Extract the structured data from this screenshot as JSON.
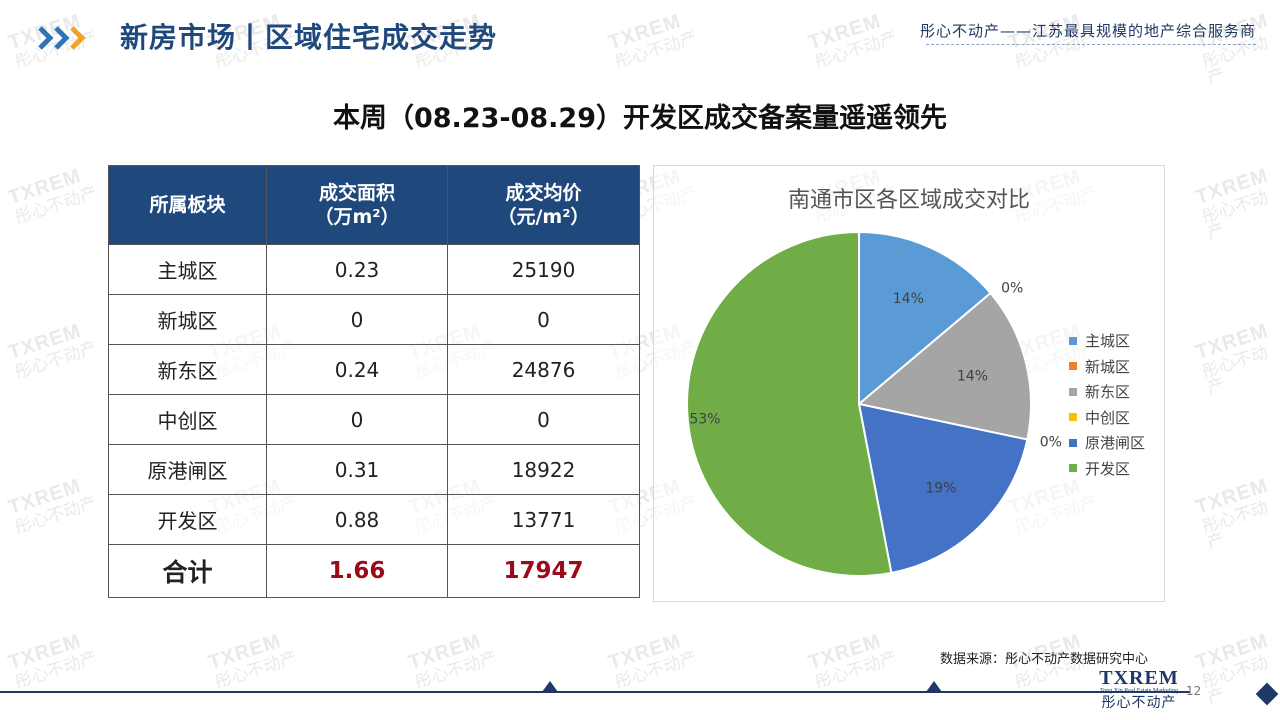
{
  "header": {
    "title": "新房市场丨区域住宅成交走势",
    "tagline": "彤心不动产——江苏最具规模的地产综合服务商"
  },
  "headline": "本周（08.23-08.29）开发区成交备案量遥遥领先",
  "table": {
    "headers": {
      "col1": "所属板块",
      "col2_line1": "成交面积",
      "col2_line2": "（万m²）",
      "col3_line1": "成交均价",
      "col3_line2": "（元/m²）"
    },
    "rows": [
      {
        "district": "主城区",
        "area": "0.23",
        "price": "25190"
      },
      {
        "district": "新城区",
        "area": "0",
        "price": "0"
      },
      {
        "district": "新东区",
        "area": "0.24",
        "price": "24876"
      },
      {
        "district": "中创区",
        "area": "0",
        "price": "0"
      },
      {
        "district": "原港闸区",
        "area": "0.31",
        "price": "18922"
      },
      {
        "district": "开发区",
        "area": "0.88",
        "price": "13771"
      }
    ],
    "total": {
      "label": "合计",
      "area": "1.66",
      "price": "17947"
    }
  },
  "chart_data": {
    "type": "pie",
    "title": "南通市区各区域成交对比",
    "categories": [
      "主城区",
      "新城区",
      "新东区",
      "中创区",
      "原港闸区",
      "开发区"
    ],
    "values": [
      0.23,
      0,
      0.24,
      0,
      0.31,
      0.88
    ],
    "data_labels": [
      "14%",
      "0%",
      "14%",
      "0%",
      "19%",
      "53%"
    ],
    "colors": [
      "#5b9bd5",
      "#ed7d31",
      "#a5a5a5",
      "#ffc000",
      "#4472c4",
      "#70ad47"
    ],
    "legend_position": "right"
  },
  "source": "数据来源：彤心不动产数据研究中心",
  "footer": {
    "logo_text": "TXREM",
    "logo_subtext": "Tong Xin Real Estate Marketing",
    "logo_cn": "彤心不动产",
    "page_number": "12"
  },
  "watermark": {
    "en": "TXREM",
    "cn": "彤心不动产"
  },
  "colors": {
    "brand_blue": "#1f497d",
    "header_navy": "#1f3864",
    "total_red": "#9c0a1a",
    "chevron_blue": "#2e75b6",
    "chevron_orange": "#f4a12a"
  }
}
